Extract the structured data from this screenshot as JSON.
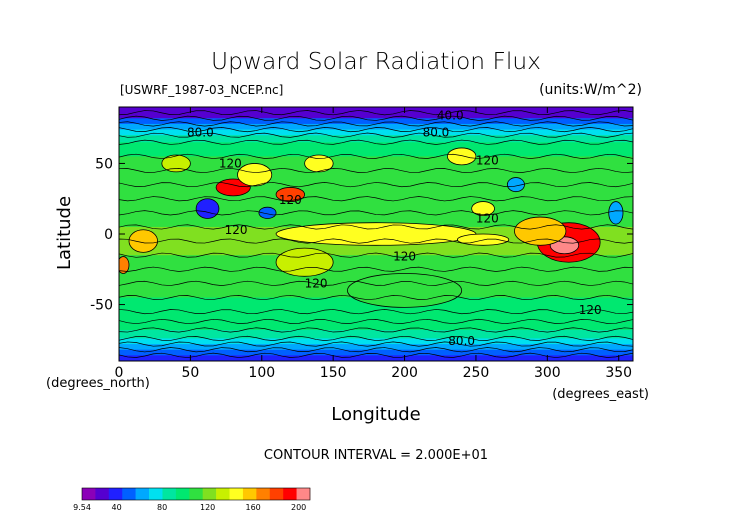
{
  "chart_data": {
    "type": "heatmap",
    "title": "Upward Solar Radiation Flux",
    "file_label": "[USWRF_1987-03_NCEP.nc]",
    "units_label": "(units:W/m^2)",
    "xlabel": "Longitude",
    "ylabel": "Latitude",
    "x_units": "(degrees_east)",
    "y_units": "(degrees_north)",
    "xlim": [
      0,
      360
    ],
    "ylim": [
      -90,
      90
    ],
    "x_ticks": [
      0,
      50,
      100,
      150,
      200,
      250,
      300,
      350
    ],
    "y_ticks": [
      -50,
      0,
      50
    ],
    "contour_interval_text": "CONTOUR INTERVAL = 2.000E+01",
    "contour_labels": [
      {
        "text": "40.0",
        "lon": 232,
        "lat": 84
      },
      {
        "text": "80.0",
        "lon": 57,
        "lat": 72
      },
      {
        "text": "80.0",
        "lon": 222,
        "lat": 72
      },
      {
        "text": "120",
        "lon": 78,
        "lat": 50
      },
      {
        "text": "120",
        "lon": 258,
        "lat": 52
      },
      {
        "text": "120",
        "lon": 120,
        "lat": 24
      },
      {
        "text": "120",
        "lon": 258,
        "lat": 11
      },
      {
        "text": "120",
        "lon": 82,
        "lat": 3
      },
      {
        "text": "120",
        "lon": 200,
        "lat": -16
      },
      {
        "text": "120",
        "lon": 138,
        "lat": -35
      },
      {
        "text": "120",
        "lon": 330,
        "lat": -54
      },
      {
        "text": "80.0",
        "lon": 240,
        "lat": -76
      }
    ],
    "colorbar": {
      "min": 9.54,
      "max": 210,
      "tick_labels": [
        "9.54",
        "40",
        "80",
        "120",
        "160",
        "200"
      ],
      "tick_values": [
        9.54,
        40,
        80,
        120,
        160,
        200
      ],
      "colors": [
        "#8b00b8",
        "#5500d0",
        "#2020ff",
        "#0060ff",
        "#00a8ff",
        "#00e0f0",
        "#00e6a0",
        "#00e870",
        "#30e040",
        "#80e020",
        "#c8f000",
        "#ffff20",
        "#ffc800",
        "#ff8000",
        "#ff4000",
        "#ff0000",
        "#ff8888"
      ]
    },
    "bands": [
      {
        "lat": 90,
        "value": 30
      },
      {
        "lat": 86,
        "value": 32
      },
      {
        "lat": 82,
        "value": 45
      },
      {
        "lat": 78,
        "value": 62
      },
      {
        "lat": 74,
        "value": 76
      },
      {
        "lat": 70,
        "value": 90
      },
      {
        "lat": 65,
        "value": 100
      },
      {
        "lat": 55,
        "value": 104
      },
      {
        "lat": 45,
        "value": 106
      },
      {
        "lat": 35,
        "value": 108
      },
      {
        "lat": 25,
        "value": 110
      },
      {
        "lat": 15,
        "value": 108
      },
      {
        "lat": 5,
        "value": 120
      },
      {
        "lat": -5,
        "value": 118
      },
      {
        "lat": -15,
        "value": 110
      },
      {
        "lat": -25,
        "value": 106
      },
      {
        "lat": -35,
        "value": 104
      },
      {
        "lat": -45,
        "value": 102
      },
      {
        "lat": -55,
        "value": 100
      },
      {
        "lat": -62,
        "value": 96
      },
      {
        "lat": -68,
        "value": 88
      },
      {
        "lat": -74,
        "value": 78
      },
      {
        "lat": -78,
        "value": 66
      },
      {
        "lat": -82,
        "value": 54
      },
      {
        "lat": -86,
        "value": 40
      },
      {
        "lat": -90,
        "value": 36
      }
    ],
    "features": [
      {
        "lon": 80,
        "lat": 33,
        "rlon": 12,
        "rlat": 6,
        "value": 190
      },
      {
        "lon": 120,
        "lat": 28,
        "rlon": 10,
        "rlat": 5,
        "value": 180
      },
      {
        "lon": 95,
        "lat": 42,
        "rlon": 12,
        "rlat": 8,
        "value": 150
      },
      {
        "lon": 140,
        "lat": 50,
        "rlon": 10,
        "rlat": 6,
        "value": 145
      },
      {
        "lon": 62,
        "lat": 18,
        "rlon": 8,
        "rlat": 7,
        "value": 40
      },
      {
        "lon": 104,
        "lat": 15,
        "rlon": 6,
        "rlat": 4,
        "value": 45
      },
      {
        "lon": 315,
        "lat": -6,
        "rlon": 22,
        "rlat": 14,
        "value": 190
      },
      {
        "lon": 312,
        "lat": -8,
        "rlon": 10,
        "rlat": 6,
        "value": 200
      },
      {
        "lon": 295,
        "lat": 2,
        "rlon": 18,
        "rlat": 10,
        "value": 160
      },
      {
        "lon": 17,
        "lat": -5,
        "rlon": 10,
        "rlat": 8,
        "value": 160
      },
      {
        "lon": 3,
        "lat": -22,
        "rlon": 4,
        "rlat": 6,
        "value": 170
      },
      {
        "lon": 180,
        "lat": 0,
        "rlon": 70,
        "rlat": 8,
        "value": 150
      },
      {
        "lon": 255,
        "lat": -4,
        "rlon": 18,
        "rlat": 4,
        "value": 150
      },
      {
        "lon": 130,
        "lat": -20,
        "rlon": 20,
        "rlat": 10,
        "value": 128
      },
      {
        "lon": 255,
        "lat": 18,
        "rlon": 8,
        "rlat": 5,
        "value": 150
      },
      {
        "lon": 240,
        "lat": 55,
        "rlon": 10,
        "rlat": 6,
        "value": 140
      },
      {
        "lon": 348,
        "lat": 15,
        "rlon": 5,
        "rlat": 8,
        "value": 60
      },
      {
        "lon": 278,
        "lat": 35,
        "rlon": 6,
        "rlat": 5,
        "value": 60
      },
      {
        "lon": 40,
        "lat": 50,
        "rlon": 10,
        "rlat": 6,
        "value": 130
      },
      {
        "lon": 200,
        "lat": -40,
        "rlon": 40,
        "rlat": 12,
        "value": 112
      }
    ]
  }
}
